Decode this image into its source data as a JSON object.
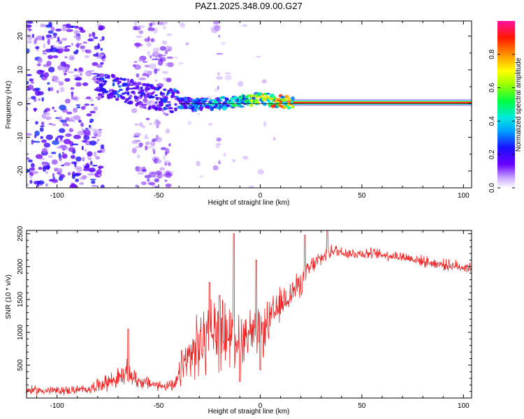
{
  "title": "PAZ1.2025.348.09.00.G27",
  "chart_data": [
    {
      "type": "heatmap",
      "xlabel": "Height of straight line (km)",
      "ylabel": "Frequency (Hz)",
      "xlim": [
        -115,
        104
      ],
      "ylim": [
        -25,
        24.5
      ],
      "xticks": [
        -100,
        -50,
        0,
        50,
        100
      ],
      "yticks": [
        -20,
        -10,
        0,
        10,
        20
      ],
      "colorbar": {
        "label": "Normalized spectral amplitude",
        "range": [
          0,
          1
        ],
        "ticks": [
          0.0,
          0.2,
          0.4,
          0.6,
          0.8
        ],
        "tick_labels": [
          "0.0",
          "0.2",
          "0.4",
          "0.6",
          "0.8"
        ]
      },
      "ridge": {
        "description_values_height_km": [
          -78,
          -70,
          -62,
          -55,
          -48,
          -40,
          -32,
          -24,
          -16,
          -8,
          0,
          8,
          16,
          104
        ],
        "frequency_hz": [
          5.5,
          4.5,
          3.0,
          2.0,
          1.2,
          0.5,
          -0.5,
          -0.3,
          0.5,
          0.8,
          1.6,
          0.8,
          0.3,
          0.3
        ],
        "amplitude": [
          0.25,
          0.3,
          0.2,
          0.2,
          0.25,
          0.3,
          0.35,
          0.4,
          0.45,
          0.55,
          0.7,
          0.8,
          0.85,
          0.85
        ]
      }
    },
    {
      "type": "line",
      "xlabel": "Height of straight line (km)",
      "ylabel": "SNR (10 * v/v)",
      "xlim": [
        -115,
        104
      ],
      "ylim": [
        0,
        2550
      ],
      "xticks": [
        -100,
        -50,
        0,
        50,
        100
      ],
      "yticks": [
        500,
        1000,
        1500,
        2000,
        2500
      ],
      "color": "#ee2222",
      "envelope_x": [
        -115,
        -100,
        -85,
        -78,
        -70,
        -65,
        -60,
        -50,
        -42,
        -38,
        -30,
        -24,
        -18,
        -12,
        -5,
        0,
        5,
        12,
        20,
        25,
        35,
        45,
        55,
        70,
        85,
        104
      ],
      "envelope_mean": [
        120,
        110,
        130,
        220,
        300,
        380,
        260,
        190,
        180,
        500,
        800,
        1000,
        1000,
        950,
        1000,
        950,
        1200,
        1500,
        1750,
        2000,
        2250,
        2200,
        2200,
        2150,
        2050,
        1980
      ],
      "envelope_spread": [
        70,
        70,
        70,
        120,
        160,
        200,
        120,
        80,
        90,
        350,
        500,
        600,
        550,
        450,
        400,
        400,
        320,
        250,
        200,
        150,
        110,
        90,
        85,
        85,
        85,
        90
      ],
      "spikes": [
        {
          "x": -65,
          "y": 1050
        },
        {
          "x": -25,
          "y": 1760
        },
        {
          "x": -20,
          "y": 1560
        },
        {
          "x": -13,
          "y": 2500
        },
        {
          "x": -2,
          "y": 2100
        },
        {
          "x": 0,
          "y": 430
        },
        {
          "x": -10,
          "y": 250
        },
        {
          "x": 22,
          "y": 2480
        },
        {
          "x": 33,
          "y": 2550
        }
      ]
    }
  ]
}
